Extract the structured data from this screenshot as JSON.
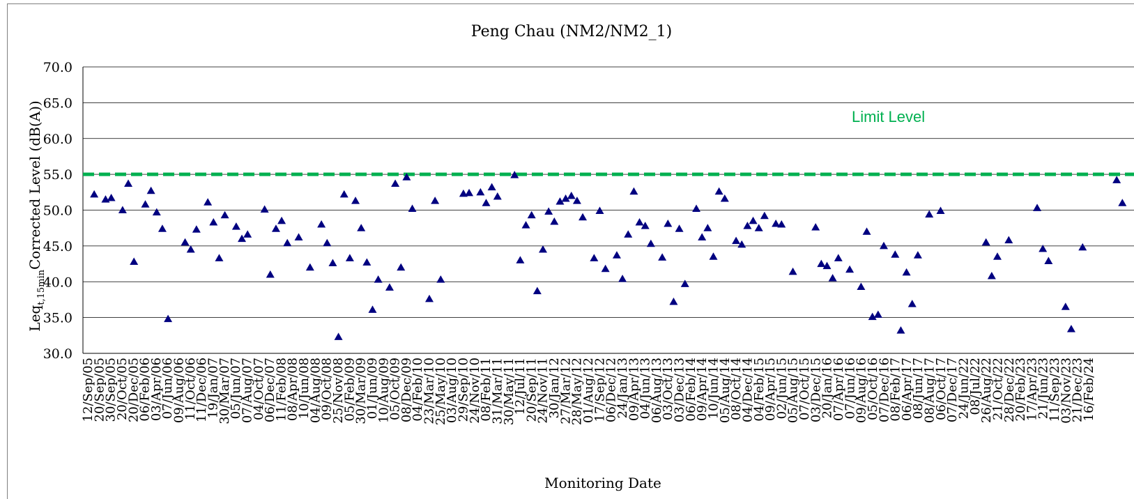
{
  "chart_data": {
    "type": "scatter",
    "title": "Peng Chau (NM2/NM2_1)",
    "xlabel": "Monitoring Date",
    "ylabel": {
      "main": "Leq",
      "subscript": "t,15min",
      "rest": "Corrected Level (dB(A))"
    },
    "ylim": [
      30.0,
      70.0
    ],
    "yticks": [
      "30.0",
      "35.0",
      "40.0",
      "45.0",
      "50.0",
      "55.0",
      "60.0",
      "65.0",
      "70.0"
    ],
    "grid": "horizontal",
    "limit": {
      "value": 55.0,
      "label": "Limit Level",
      "color": "#00b050"
    },
    "marker_color": "#000080",
    "x_tick_labels": [
      "12/Sep/05",
      "20/Sep/05",
      "30/Sep/05",
      "20/Oct/05",
      "20/Dec/05",
      "06/Feb/06",
      "03/Apr/06",
      "07/Jun/06",
      "09/Aug/06",
      "11/Oct/06",
      "11/Dec/06",
      "19/Jan/07",
      "30/Mar/07",
      "05/Jun/07",
      "07/Aug/07",
      "04/Oct/07",
      "06/Dec/07",
      "11/Feb/08",
      "08/Apr/08",
      "10/Jun/08",
      "04/Aug/08",
      "09/Oct/08",
      "25/Nov/08",
      "05/Feb/09",
      "30/Mar/09",
      "01/Jun/09",
      "10/Aug/09",
      "05/Oct/09",
      "08/Dec/09",
      "04/Feb/10",
      "23/Mar/10",
      "25/May/10",
      "03/Aug/10",
      "29/Sep/10",
      "24/Nov/10",
      "08/Feb/11",
      "31/Mar/11",
      "30/May/11",
      "12/Jul/11",
      "20/Sep/11",
      "24/Nov/11",
      "30/Jan/12",
      "27/Mar/12",
      "28/May/12",
      "01/Aug/12",
      "17/Sep/12",
      "06/Dec/12",
      "24/Jan/13",
      "09/Apr/13",
      "04/Jun/13",
      "06/Aug/13",
      "03/Oct/13",
      "03/Dec/13",
      "06/Feb/14",
      "09/Apr/14",
      "10/Jun/14",
      "05/Aug/14",
      "08/Oct/14",
      "04/Dec/14",
      "04/Feb/15",
      "09/Apr/15",
      "02/Jun/15",
      "05/Aug/15",
      "07/Oct/15",
      "03/Dec/15",
      "20/Jan/16",
      "07/Apr/16",
      "07/Jun/16",
      "09/Aug/16",
      "05/Oct/16",
      "07/Dec/16",
      "08/Feb/17",
      "06/Apr/17",
      "08/Jun/17",
      "08/Aug/17",
      "06/Oct/17",
      "07/Dec/17",
      "24/Jun/22",
      "08/Jul/22",
      "26/Aug/22",
      "21/Oct/22",
      "28/Dec/22",
      "20/Feb/23",
      "17/Apr/23",
      "21/Jun/23",
      "11/Sep/23",
      "03/Nov/23",
      "21/Dec/23",
      "16/Feb/24"
    ],
    "x_range": [
      0,
      175
    ],
    "points": [
      [
        1,
        52.2
      ],
      [
        3,
        51.5
      ],
      [
        4,
        51.7
      ],
      [
        6,
        50.0
      ],
      [
        7,
        53.7
      ],
      [
        8,
        42.8
      ],
      [
        10,
        50.8
      ],
      [
        11,
        52.7
      ],
      [
        12,
        49.7
      ],
      [
        13,
        47.4
      ],
      [
        14,
        34.8
      ],
      [
        17,
        45.5
      ],
      [
        18,
        44.5
      ],
      [
        19,
        47.3
      ],
      [
        21,
        51.1
      ],
      [
        22,
        48.3
      ],
      [
        23,
        43.3
      ],
      [
        24,
        49.3
      ],
      [
        26,
        47.7
      ],
      [
        27,
        46.0
      ],
      [
        28,
        46.6
      ],
      [
        31,
        50.1
      ],
      [
        32,
        41.0
      ],
      [
        33,
        47.4
      ],
      [
        34,
        48.5
      ],
      [
        35,
        45.4
      ],
      [
        37,
        46.2
      ],
      [
        39,
        42.0
      ],
      [
        41,
        48.0
      ],
      [
        42,
        45.4
      ],
      [
        43,
        42.6
      ],
      [
        44,
        32.3
      ],
      [
        45,
        52.2
      ],
      [
        46,
        43.3
      ],
      [
        47,
        51.3
      ],
      [
        48,
        47.5
      ],
      [
        49,
        42.7
      ],
      [
        50,
        36.1
      ],
      [
        51,
        40.3
      ],
      [
        53,
        39.2
      ],
      [
        54,
        53.7
      ],
      [
        55,
        42.0
      ],
      [
        56,
        54.6
      ],
      [
        57,
        50.2
      ],
      [
        60,
        37.6
      ],
      [
        61,
        51.3
      ],
      [
        62,
        40.3
      ],
      [
        66,
        52.3
      ],
      [
        67,
        52.4
      ],
      [
        69,
        52.5
      ],
      [
        70,
        51.0
      ],
      [
        71,
        53.2
      ],
      [
        72,
        51.9
      ],
      [
        75,
        54.9
      ],
      [
        76,
        43.0
      ],
      [
        77,
        47.9
      ],
      [
        78,
        49.3
      ],
      [
        79,
        38.7
      ],
      [
        80,
        44.5
      ],
      [
        81,
        49.8
      ],
      [
        82,
        48.4
      ],
      [
        83,
        51.2
      ],
      [
        84,
        51.6
      ],
      [
        85,
        52.0
      ],
      [
        86,
        51.3
      ],
      [
        87,
        49.0
      ],
      [
        89,
        43.3
      ],
      [
        90,
        49.9
      ],
      [
        91,
        41.8
      ],
      [
        93,
        43.7
      ],
      [
        94,
        40.4
      ],
      [
        95,
        46.6
      ],
      [
        96,
        52.6
      ],
      [
        97,
        48.3
      ],
      [
        98,
        47.8
      ],
      [
        99,
        45.3
      ],
      [
        101,
        43.4
      ],
      [
        102,
        48.1
      ],
      [
        103,
        37.2
      ],
      [
        104,
        47.4
      ],
      [
        105,
        39.7
      ],
      [
        107,
        50.2
      ],
      [
        108,
        46.2
      ],
      [
        109,
        47.5
      ],
      [
        110,
        43.5
      ],
      [
        111,
        52.6
      ],
      [
        112,
        51.6
      ],
      [
        114,
        45.7
      ],
      [
        115,
        45.2
      ],
      [
        116,
        47.8
      ],
      [
        117,
        48.5
      ],
      [
        118,
        47.5
      ],
      [
        119,
        49.2
      ],
      [
        121,
        48.1
      ],
      [
        122,
        48.0
      ],
      [
        124,
        41.4
      ],
      [
        128,
        47.6
      ],
      [
        129,
        42.5
      ],
      [
        130,
        42.2
      ],
      [
        131,
        40.5
      ],
      [
        132,
        43.3
      ],
      [
        134,
        41.7
      ],
      [
        136,
        39.3
      ],
      [
        137,
        47.0
      ],
      [
        138,
        35.1
      ],
      [
        139,
        35.4
      ],
      [
        140,
        45.0
      ],
      [
        142,
        43.8
      ],
      [
        143,
        33.2
      ],
      [
        144,
        41.3
      ],
      [
        145,
        36.9
      ],
      [
        146,
        43.7
      ],
      [
        148,
        49.4
      ],
      [
        150,
        49.9
      ],
      [
        158,
        45.5
      ],
      [
        159,
        40.8
      ],
      [
        160,
        43.5
      ],
      [
        162,
        45.8
      ],
      [
        167,
        50.3
      ],
      [
        168,
        44.6
      ],
      [
        169,
        42.9
      ],
      [
        172,
        36.5
      ],
      [
        173,
        33.4
      ],
      [
        175,
        44.8
      ],
      [
        181,
        54.2
      ],
      [
        182,
        51.0
      ]
    ]
  }
}
